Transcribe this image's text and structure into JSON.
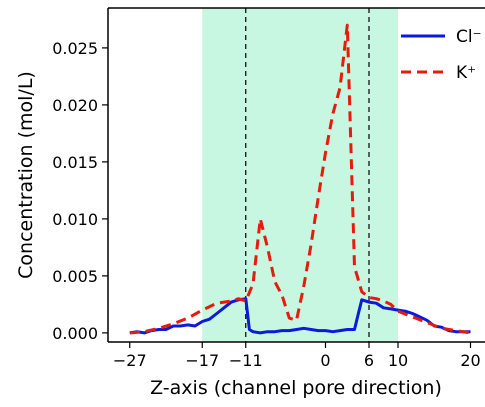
{
  "chart_data": {
    "type": "line",
    "xlabel": "Z-axis (channel pore direction)",
    "ylabel": "Concentration (mol/L)",
    "xlim": [
      -30,
      22
    ],
    "ylim": [
      -0.0008,
      0.0285
    ],
    "xticks": [
      -27,
      -17,
      -11,
      0,
      6,
      10,
      20
    ],
    "xtick_labels": [
      "−27",
      "−17",
      "−11",
      "0",
      "6",
      "10",
      "20"
    ],
    "yticks": [
      0.0,
      0.005,
      0.01,
      0.015,
      0.02,
      0.025
    ],
    "ytick_labels": [
      "0.000",
      "0.005",
      "0.010",
      "0.015",
      "0.020",
      "0.025"
    ],
    "shaded_region": {
      "x": [
        -17,
        10
      ],
      "color": "#c7f7e0"
    },
    "vertical_lines": [
      -11,
      6
    ],
    "legend_position": "top-right",
    "series": [
      {
        "name": "Cl⁻",
        "color": "#0a1bdc",
        "style": "solid",
        "x": [
          -27,
          -26,
          -25,
          -24,
          -23,
          -22,
          -21,
          -20,
          -19,
          -18,
          -17,
          -16,
          -15,
          -14,
          -13,
          -12,
          -11,
          -10.5,
          -10,
          -9,
          -8,
          -7,
          -6,
          -5,
          -4,
          -3,
          -2,
          -1,
          0,
          1,
          2,
          3,
          4,
          4.5,
          5,
          6,
          7,
          8,
          9,
          10,
          11,
          12,
          13,
          14,
          15,
          16,
          17,
          18,
          19,
          20
        ],
        "y": [
          0.0,
          0.0001,
          0.0,
          0.0002,
          0.0003,
          0.0003,
          0.0006,
          0.0006,
          0.0007,
          0.0006,
          0.001,
          0.0012,
          0.0017,
          0.0022,
          0.0027,
          0.0029,
          0.003,
          0.0003,
          0.0001,
          0.0,
          0.0001,
          0.0001,
          0.0002,
          0.0002,
          0.0003,
          0.0004,
          0.0003,
          0.0002,
          0.0002,
          0.0001,
          0.0002,
          0.0003,
          0.0003,
          0.0016,
          0.0029,
          0.0027,
          0.0026,
          0.0022,
          0.0021,
          0.002,
          0.0019,
          0.0017,
          0.0014,
          0.0011,
          0.0006,
          0.0005,
          0.0002,
          0.0001,
          0.0001,
          0.0001
        ]
      },
      {
        "name": "K⁺",
        "color": "#e81a0c",
        "style": "dashed",
        "x": [
          -27,
          -25,
          -23,
          -21,
          -19,
          -17,
          -15,
          -13,
          -12,
          -11,
          -10,
          -9,
          -8,
          -7,
          -6,
          -5,
          -4,
          -3,
          -2,
          -1,
          0,
          1,
          2,
          3,
          4,
          5,
          6,
          7,
          8,
          9,
          10,
          12,
          14,
          16,
          18,
          20
        ],
        "y": [
          0.0,
          0.0001,
          0.0004,
          0.0008,
          0.0013,
          0.002,
          0.0026,
          0.0028,
          0.003,
          0.0028,
          0.0043,
          0.01,
          0.0075,
          0.0045,
          0.0033,
          0.0013,
          0.0011,
          0.0041,
          0.0077,
          0.0119,
          0.0158,
          0.0192,
          0.0215,
          0.027,
          0.0058,
          0.0036,
          0.0031,
          0.003,
          0.0028,
          0.0025,
          0.0019,
          0.0014,
          0.0009,
          0.0004,
          0.0002,
          0.0
        ]
      }
    ]
  }
}
